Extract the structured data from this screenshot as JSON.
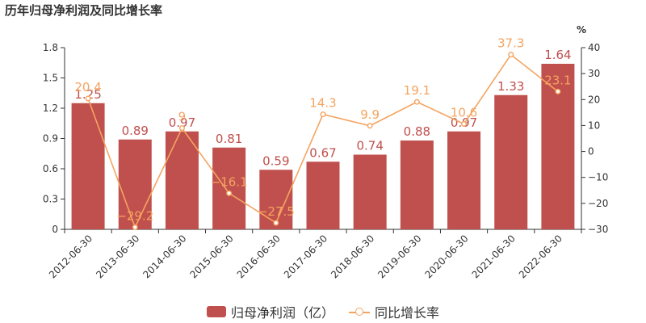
{
  "title": "历年归母净利润及同比增长率",
  "chart_data": {
    "type": "bar",
    "categories": [
      "2012-06-30",
      "2013-06-30",
      "2014-06-30",
      "2015-06-30",
      "2016-06-30",
      "2017-06-30",
      "2018-06-30",
      "2019-06-30",
      "2020-06-30",
      "2021-06-30",
      "2022-06-30"
    ],
    "series": [
      {
        "name": "归母净利润（亿）",
        "type": "bar",
        "axis": "left",
        "values": [
          1.25,
          0.89,
          0.97,
          0.81,
          0.59,
          0.67,
          0.74,
          0.88,
          0.97,
          1.33,
          1.64
        ],
        "labels": [
          "1.25",
          "0.89",
          "0.97",
          "0.81",
          "0.59",
          "0.67",
          "0.74",
          "0.88",
          "0.97",
          "1.33",
          "1.64"
        ]
      },
      {
        "name": "同比增长率",
        "type": "line",
        "axis": "right",
        "values": [
          20.4,
          -29.2,
          9,
          -16.1,
          -27.5,
          14.3,
          9.9,
          19.1,
          10.6,
          37.3,
          23.1
        ],
        "labels": [
          "20.4",
          "−29.2",
          "9",
          "−16.1",
          "−27.5",
          "14.3",
          "9.9",
          "19.1",
          "10.6",
          "37.3",
          "23.1"
        ]
      }
    ],
    "y_left": {
      "min": 0,
      "max": 1.8,
      "ticks": [
        "0",
        "0.3",
        "0.6",
        "0.9",
        "1.2",
        "1.5",
        "1.8"
      ]
    },
    "y_right": {
      "min": -30,
      "max": 40,
      "unit": "%",
      "ticks": [
        "−30",
        "−20",
        "−10",
        "0",
        "10",
        "20",
        "30",
        "40"
      ]
    },
    "legend_position": "bottom-center",
    "grid": false
  },
  "colors": {
    "bar": "#c0504d",
    "line": "#f4a460",
    "axis": "#333333",
    "text": "#333333"
  }
}
